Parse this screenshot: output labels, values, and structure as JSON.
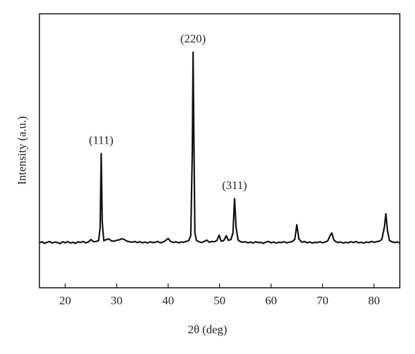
{
  "chart_data": {
    "type": "line",
    "xlabel": "2θ (deg)",
    "ylabel": "Intensity (a.u.)",
    "xlim": [
      15,
      85
    ],
    "ylim": [
      0,
      100
    ],
    "xticks": [
      20,
      30,
      40,
      50,
      60,
      70,
      80
    ],
    "color": "#111111",
    "x": [
      15,
      15.5,
      16,
      16.5,
      17,
      17.5,
      18,
      18.5,
      19,
      19.5,
      20,
      20.5,
      21,
      21.5,
      22,
      22.5,
      23,
      23.5,
      24,
      24.5,
      25,
      25.5,
      26,
      26.5,
      26.8,
      27.0,
      27.2,
      27.5,
      28,
      28.5,
      29,
      29.5,
      30,
      30.5,
      31,
      31.5,
      32,
      32.5,
      33,
      33.5,
      34,
      34.5,
      35,
      35.5,
      36,
      36.5,
      37,
      37.5,
      38,
      38.5,
      39,
      39.5,
      40,
      40.5,
      41,
      41.5,
      42,
      42.5,
      43,
      43.5,
      44,
      44.4,
      44.7,
      44.85,
      45.0,
      45.2,
      45.5,
      46,
      46.5,
      47,
      47.5,
      48,
      48.5,
      49,
      49.5,
      49.9,
      50.3,
      50.8,
      51.3,
      51.7,
      52.2,
      52.6,
      52.9,
      53.2,
      53.6,
      54,
      54.5,
      55,
      55.5,
      56,
      56.5,
      57,
      57.5,
      58,
      58.5,
      59,
      59.5,
      60,
      60.5,
      61,
      61.5,
      62,
      62.5,
      63,
      63.5,
      64,
      64.6,
      65.0,
      65.4,
      66,
      66.5,
      67,
      67.5,
      68,
      68.5,
      69,
      69.5,
      70,
      70.5,
      71,
      71.5,
      71.8,
      72.2,
      72.6,
      73,
      73.5,
      74,
      74.5,
      75,
      75.5,
      76,
      76.5,
      77,
      77.5,
      78,
      78.5,
      79,
      79.5,
      80,
      80.5,
      81,
      81.5,
      82.0,
      82.3,
      82.6,
      83,
      83.5,
      84,
      84.5,
      85
    ],
    "values": [
      16.4,
      16.8,
      16.2,
      16.6,
      16.9,
      16.3,
      16.7,
      16.5,
      16.1,
      16.8,
      16.4,
      16.9,
      16.3,
      16.6,
      16.2,
      16.8,
      16.5,
      16.9,
      16.4,
      16.7,
      17.6,
      16.8,
      16.9,
      17.2,
      22,
      49,
      24,
      17.2,
      17.6,
      17.8,
      17.1,
      17.0,
      17.3,
      17.5,
      17.9,
      17.6,
      17.0,
      16.8,
      16.6,
      16.9,
      16.5,
      16.8,
      16.4,
      16.7,
      16.3,
      16.8,
      16.5,
      16.6,
      16.9,
      16.4,
      16.7,
      17.2,
      18.0,
      16.9,
      16.5,
      16.8,
      16.4,
      16.7,
      16.6,
      16.9,
      17.2,
      19,
      50,
      86,
      55,
      20,
      17.3,
      16.8,
      16.5,
      16.9,
      17.4,
      16.6,
      16.9,
      16.8,
      17.3,
      19.2,
      17.0,
      17.2,
      19.0,
      17.3,
      17.6,
      20,
      32.5,
      22,
      17.4,
      16.9,
      16.6,
      16.8,
      16.4,
      16.7,
      16.3,
      16.8,
      16.5,
      16.6,
      16.2,
      16.7,
      16.9,
      16.4,
      16.7,
      16.3,
      16.6,
      16.5,
      16.8,
      16.4,
      16.6,
      16.8,
      17.6,
      23,
      17.8,
      16.6,
      16.9,
      16.4,
      16.7,
      16.3,
      16.6,
      16.5,
      16.8,
      16.4,
      16.7,
      17.1,
      19.2,
      20,
      17.4,
      16.8,
      16.5,
      16.7,
      16.3,
      16.6,
      16.4,
      16.8,
      16.5,
      16.9,
      16.4,
      16.6,
      16.3,
      16.7,
      16.5,
      16.9,
      16.6,
      16.8,
      17.0,
      17.6,
      22,
      27,
      21,
      17.2,
      16.8,
      16.5,
      16.7,
      16.4
    ],
    "annotations": [
      {
        "text": "(111)",
        "x": 27.0,
        "y": 49
      },
      {
        "text": "(220)",
        "x": 44.85,
        "y": 86
      },
      {
        "text": "(311)",
        "x": 52.9,
        "y": 32.5
      }
    ]
  }
}
